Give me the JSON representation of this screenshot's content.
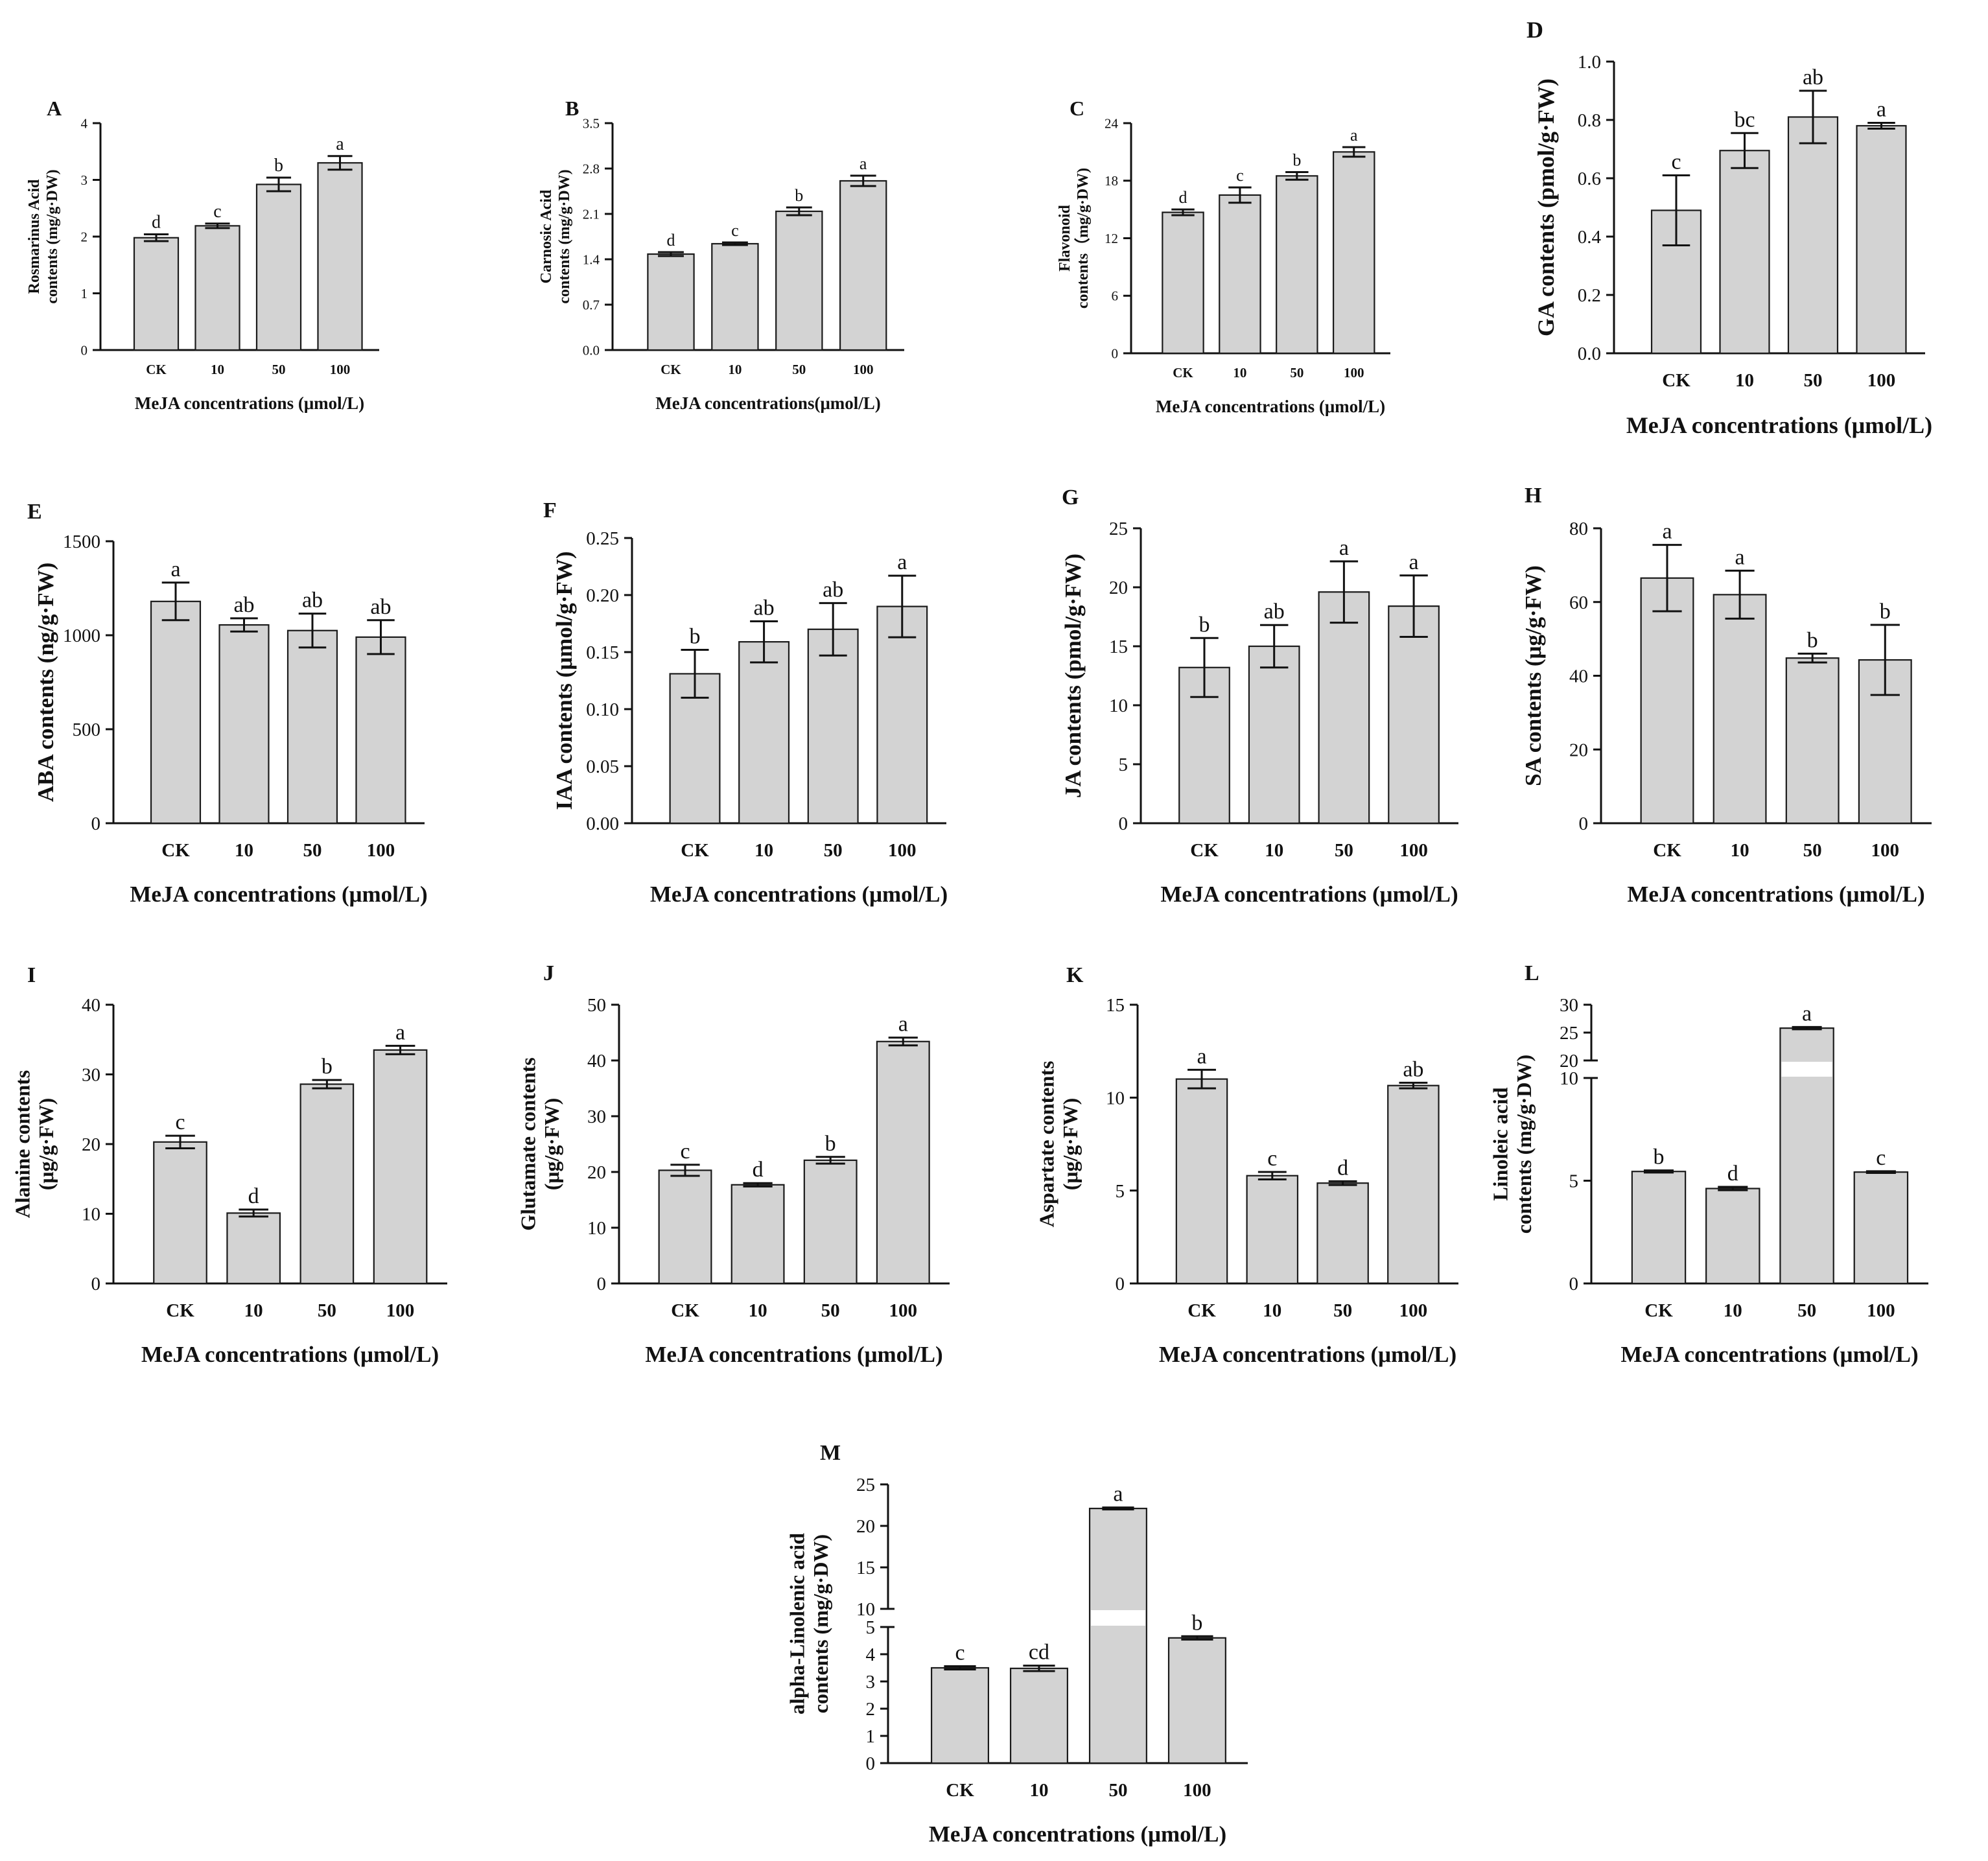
{
  "figure": {
    "x_axis_label": "MeJA concentrations (μmol/L)"
  },
  "colors": {
    "bar_fill": "#d3d3d3",
    "bar_stroke": "#1a1a1a",
    "axis": "#111111"
  },
  "chart_data": [
    {
      "id": "A",
      "type": "bar",
      "title": "A",
      "ylabel": [
        "Rosmarinus Acid",
        "contents (mg/g·DW)"
      ],
      "xlabel": "MeJA concentrations (μmol/L)",
      "categories": [
        "CK",
        "10",
        "50",
        "100"
      ],
      "values": [
        1.98,
        2.19,
        2.92,
        3.3
      ],
      "errors": [
        0.06,
        0.04,
        0.12,
        0.12
      ],
      "letters": [
        "d",
        "c",
        "b",
        "a"
      ],
      "ylim": [
        0,
        4
      ],
      "yticks": [
        "0",
        "1",
        "2",
        "3",
        "4"
      ]
    },
    {
      "id": "B",
      "type": "bar",
      "title": "B",
      "ylabel": [
        "Carnosic Acid",
        "contents (mg/g·DW)"
      ],
      "xlabel": "MeJA concentrations(μmol/L)",
      "categories": [
        "CK",
        "10",
        "50",
        "100"
      ],
      "values": [
        1.48,
        1.64,
        2.14,
        2.61
      ],
      "errors": [
        0.03,
        0.02,
        0.06,
        0.08
      ],
      "letters": [
        "d",
        "c",
        "b",
        "a"
      ],
      "ylim": [
        0,
        3.5
      ],
      "yticks": [
        "0.0",
        "0.7",
        "1.4",
        "2.1",
        "2.8",
        "3.5"
      ]
    },
    {
      "id": "C",
      "type": "bar",
      "title": "C",
      "ylabel": [
        "Flavonoid",
        "contents（mg/g·DW)"
      ],
      "xlabel": "MeJA concentrations (μmol/L)",
      "categories": [
        "CK",
        "10",
        "50",
        "100"
      ],
      "values": [
        14.7,
        16.5,
        18.5,
        21.0
      ],
      "errors": [
        0.3,
        0.8,
        0.4,
        0.5
      ],
      "letters": [
        "d",
        "c",
        "b",
        "a"
      ],
      "ylim": [
        0,
        24
      ],
      "yticks": [
        "0",
        "6",
        "12",
        "18",
        "24"
      ]
    },
    {
      "id": "D",
      "type": "bar",
      "title": "D",
      "ylabel": [
        "GA contents (pmol/g·FW)"
      ],
      "xlabel": "MeJA concentrations (μmol/L)",
      "categories": [
        "CK",
        "10",
        "50",
        "100"
      ],
      "values": [
        0.49,
        0.695,
        0.81,
        0.78
      ],
      "errors": [
        0.12,
        0.06,
        0.09,
        0.01
      ],
      "letters": [
        "c",
        "bc",
        "ab",
        "a"
      ],
      "ylim": [
        0,
        1.0
      ],
      "yticks": [
        "0.0",
        "0.2",
        "0.4",
        "0.6",
        "0.8",
        "1.0"
      ]
    },
    {
      "id": "E",
      "type": "bar",
      "title": "E",
      "ylabel": [
        "ABA contents (ng/g·FW)"
      ],
      "xlabel": "MeJA concentrations (μmol/L)",
      "categories": [
        "CK",
        "10",
        "50",
        "100"
      ],
      "values": [
        1180,
        1055,
        1025,
        990
      ],
      "errors": [
        100,
        35,
        90,
        90
      ],
      "letters": [
        "a",
        "ab",
        "ab",
        "ab"
      ],
      "ylim": [
        0,
        1500
      ],
      "yticks": [
        "0",
        "500",
        "1000",
        "1500"
      ]
    },
    {
      "id": "F",
      "type": "bar",
      "title": "F",
      "ylabel": [
        "IAA contents (μmol/g·FW)"
      ],
      "xlabel": "MeJA concentrations (μmol/L)",
      "categories": [
        "CK",
        "10",
        "50",
        "100"
      ],
      "values": [
        0.131,
        0.159,
        0.17,
        0.19
      ],
      "errors": [
        0.021,
        0.018,
        0.023,
        0.027
      ],
      "letters": [
        "b",
        "ab",
        "ab",
        "a"
      ],
      "ylim": [
        0,
        0.25
      ],
      "yticks": [
        "0.00",
        "0.05",
        "0.10",
        "0.15",
        "0.20",
        "0.25"
      ]
    },
    {
      "id": "G",
      "type": "bar",
      "title": "G",
      "ylabel": [
        "JA contents (pmol/g·FW)"
      ],
      "xlabel": "MeJA concentrations (μmol/L)",
      "categories": [
        "CK",
        "10",
        "50",
        "100"
      ],
      "values": [
        13.2,
        15.0,
        19.6,
        18.4
      ],
      "errors": [
        2.5,
        1.8,
        2.6,
        2.6
      ],
      "letters": [
        "b",
        "ab",
        "a",
        "a"
      ],
      "ylim": [
        0,
        25
      ],
      "yticks": [
        "0",
        "5",
        "10",
        "15",
        "20",
        "25"
      ]
    },
    {
      "id": "H",
      "type": "bar",
      "title": "H",
      "ylabel": [
        "SA contents (μg/g·FW)"
      ],
      "xlabel": "MeJA concentrations (μmol/L)",
      "categories": [
        "CK",
        "10",
        "50",
        "100"
      ],
      "values": [
        66.5,
        62.0,
        44.8,
        44.3
      ],
      "errors": [
        9.0,
        6.5,
        1.2,
        9.5
      ],
      "letters": [
        "a",
        "a",
        "b",
        "b"
      ],
      "ylim": [
        0,
        80
      ],
      "yticks": [
        "0",
        "20",
        "40",
        "60",
        "80"
      ]
    },
    {
      "id": "I",
      "type": "bar",
      "title": "I",
      "ylabel": [
        "Alanine contents",
        "(μg/g·FW)"
      ],
      "xlabel": "MeJA concentrations (μmol/L)",
      "categories": [
        "CK",
        "10",
        "50",
        "100"
      ],
      "values": [
        20.3,
        10.1,
        28.6,
        33.5
      ],
      "errors": [
        0.9,
        0.5,
        0.6,
        0.6
      ],
      "letters": [
        "c",
        "d",
        "b",
        "a"
      ],
      "ylim": [
        0,
        40
      ],
      "yticks": [
        "0",
        "10",
        "20",
        "30",
        "40"
      ]
    },
    {
      "id": "J",
      "type": "bar",
      "title": "J",
      "ylabel": [
        "Glutamate contents",
        "(μg/g·FW)"
      ],
      "xlabel": "MeJA concentrations (μmol/L)",
      "categories": [
        "CK",
        "10",
        "50",
        "100"
      ],
      "values": [
        20.3,
        17.7,
        22.1,
        43.4
      ],
      "errors": [
        1.0,
        0.3,
        0.6,
        0.7
      ],
      "letters": [
        "c",
        "d",
        "b",
        "a"
      ],
      "ylim": [
        0,
        50
      ],
      "yticks": [
        "0",
        "10",
        "20",
        "30",
        "40",
        "50"
      ]
    },
    {
      "id": "K",
      "type": "bar",
      "title": "K",
      "ylabel": [
        "Aspartate contents",
        "(μg/g·FW)"
      ],
      "xlabel": "MeJA concentrations (μmol/L)",
      "categories": [
        "CK",
        "10",
        "50",
        "100"
      ],
      "values": [
        11.0,
        5.8,
        5.4,
        10.65
      ],
      "errors": [
        0.5,
        0.2,
        0.1,
        0.15
      ],
      "letters": [
        "a",
        "c",
        "d",
        "ab"
      ],
      "ylim": [
        0,
        15
      ],
      "yticks": [
        "0",
        "5",
        "10",
        "15"
      ]
    },
    {
      "id": "L",
      "type": "bar",
      "title": "L",
      "ylabel": [
        "Linoleic acid",
        "contents (mg/g·DW)"
      ],
      "xlabel": "MeJA concentrations (μmol/L)",
      "categories": [
        "CK",
        "10",
        "50",
        "100"
      ],
      "values": [
        5.45,
        4.62,
        25.8,
        5.42
      ],
      "errors": [
        0.05,
        0.08,
        0.2,
        0.04
      ],
      "letters": [
        "b",
        "d",
        "a",
        "c"
      ],
      "ylim": [
        0,
        30
      ],
      "axis_break": {
        "lower": [
          0,
          10
        ],
        "upper": [
          20,
          30
        ],
        "lower_ticks": [
          "0",
          "5",
          "10"
        ],
        "upper_ticks": [
          "20",
          "25",
          "30"
        ]
      }
    },
    {
      "id": "M",
      "type": "bar",
      "title": "M",
      "ylabel": [
        "alpha-Linolenic acid",
        "contents (mg/g·DW)"
      ],
      "xlabel": "MeJA concentrations (μmol/L)",
      "categories": [
        "CK",
        "10",
        "50",
        "100"
      ],
      "values": [
        3.5,
        3.48,
        22.1,
        4.6
      ],
      "errors": [
        0.06,
        0.1,
        0.12,
        0.06
      ],
      "letters": [
        "c",
        "cd",
        "a",
        "b"
      ],
      "ylim": [
        0,
        25
      ],
      "axis_break": {
        "lower": [
          0,
          5
        ],
        "upper": [
          10,
          25
        ],
        "lower_ticks": [
          "0",
          "1",
          "2",
          "3",
          "4",
          "5"
        ],
        "upper_ticks": [
          "10",
          "15",
          "20",
          "25"
        ]
      }
    }
  ]
}
